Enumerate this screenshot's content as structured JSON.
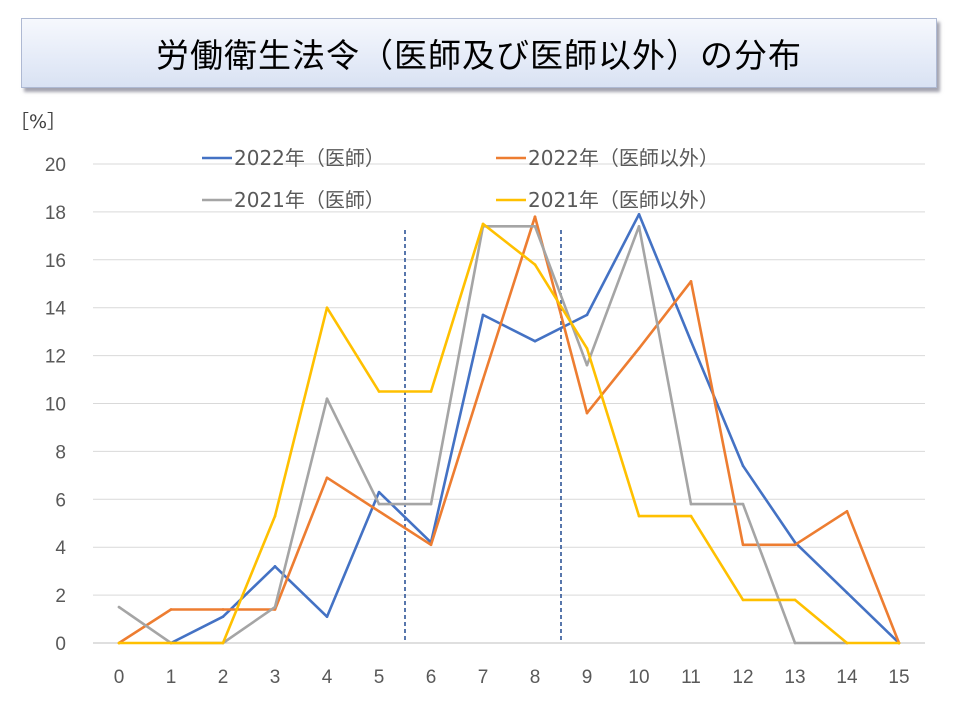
{
  "title": "労働衛生法令（医師及び医師以外）の分布",
  "chart_data": {
    "type": "line",
    "unit_label": "［%］",
    "x": [
      0,
      1,
      2,
      3,
      4,
      5,
      6,
      7,
      8,
      9,
      10,
      11,
      12,
      13,
      14,
      15
    ],
    "ylim": [
      0,
      20
    ],
    "yticks": [
      0,
      2,
      4,
      6,
      8,
      10,
      12,
      14,
      16,
      18,
      20
    ],
    "grid": true,
    "legend_position": "top",
    "reference_lines_x": [
      5.5,
      8.5
    ],
    "reference_line_color": "#2f5597",
    "series": [
      {
        "name": "2022年（医師）",
        "color": "#4472c4",
        "values": [
          null,
          0,
          1.1,
          3.2,
          1.1,
          6.3,
          4.2,
          13.7,
          12.6,
          13.7,
          17.9,
          12.6,
          7.4,
          4.2,
          2.1,
          0
        ]
      },
      {
        "name": "2022年（医師以外）",
        "color": "#ed7d31",
        "values": [
          0,
          1.4,
          1.4,
          1.4,
          6.9,
          5.5,
          4.1,
          11.0,
          17.8,
          9.6,
          12.3,
          15.1,
          4.1,
          4.1,
          5.5,
          0
        ]
      },
      {
        "name": "2021年（医師）",
        "color": "#a5a5a5",
        "values": [
          1.5,
          0,
          0,
          1.5,
          10.2,
          5.8,
          5.8,
          17.4,
          17.4,
          11.6,
          17.4,
          5.8,
          5.8,
          0,
          0,
          null
        ]
      },
      {
        "name": "2021年（医師以外）",
        "color": "#ffc000",
        "values": [
          0,
          0,
          0,
          5.3,
          14.0,
          10.5,
          10.5,
          17.5,
          15.8,
          12.3,
          5.3,
          5.3,
          1.8,
          1.8,
          0,
          0
        ]
      }
    ]
  }
}
